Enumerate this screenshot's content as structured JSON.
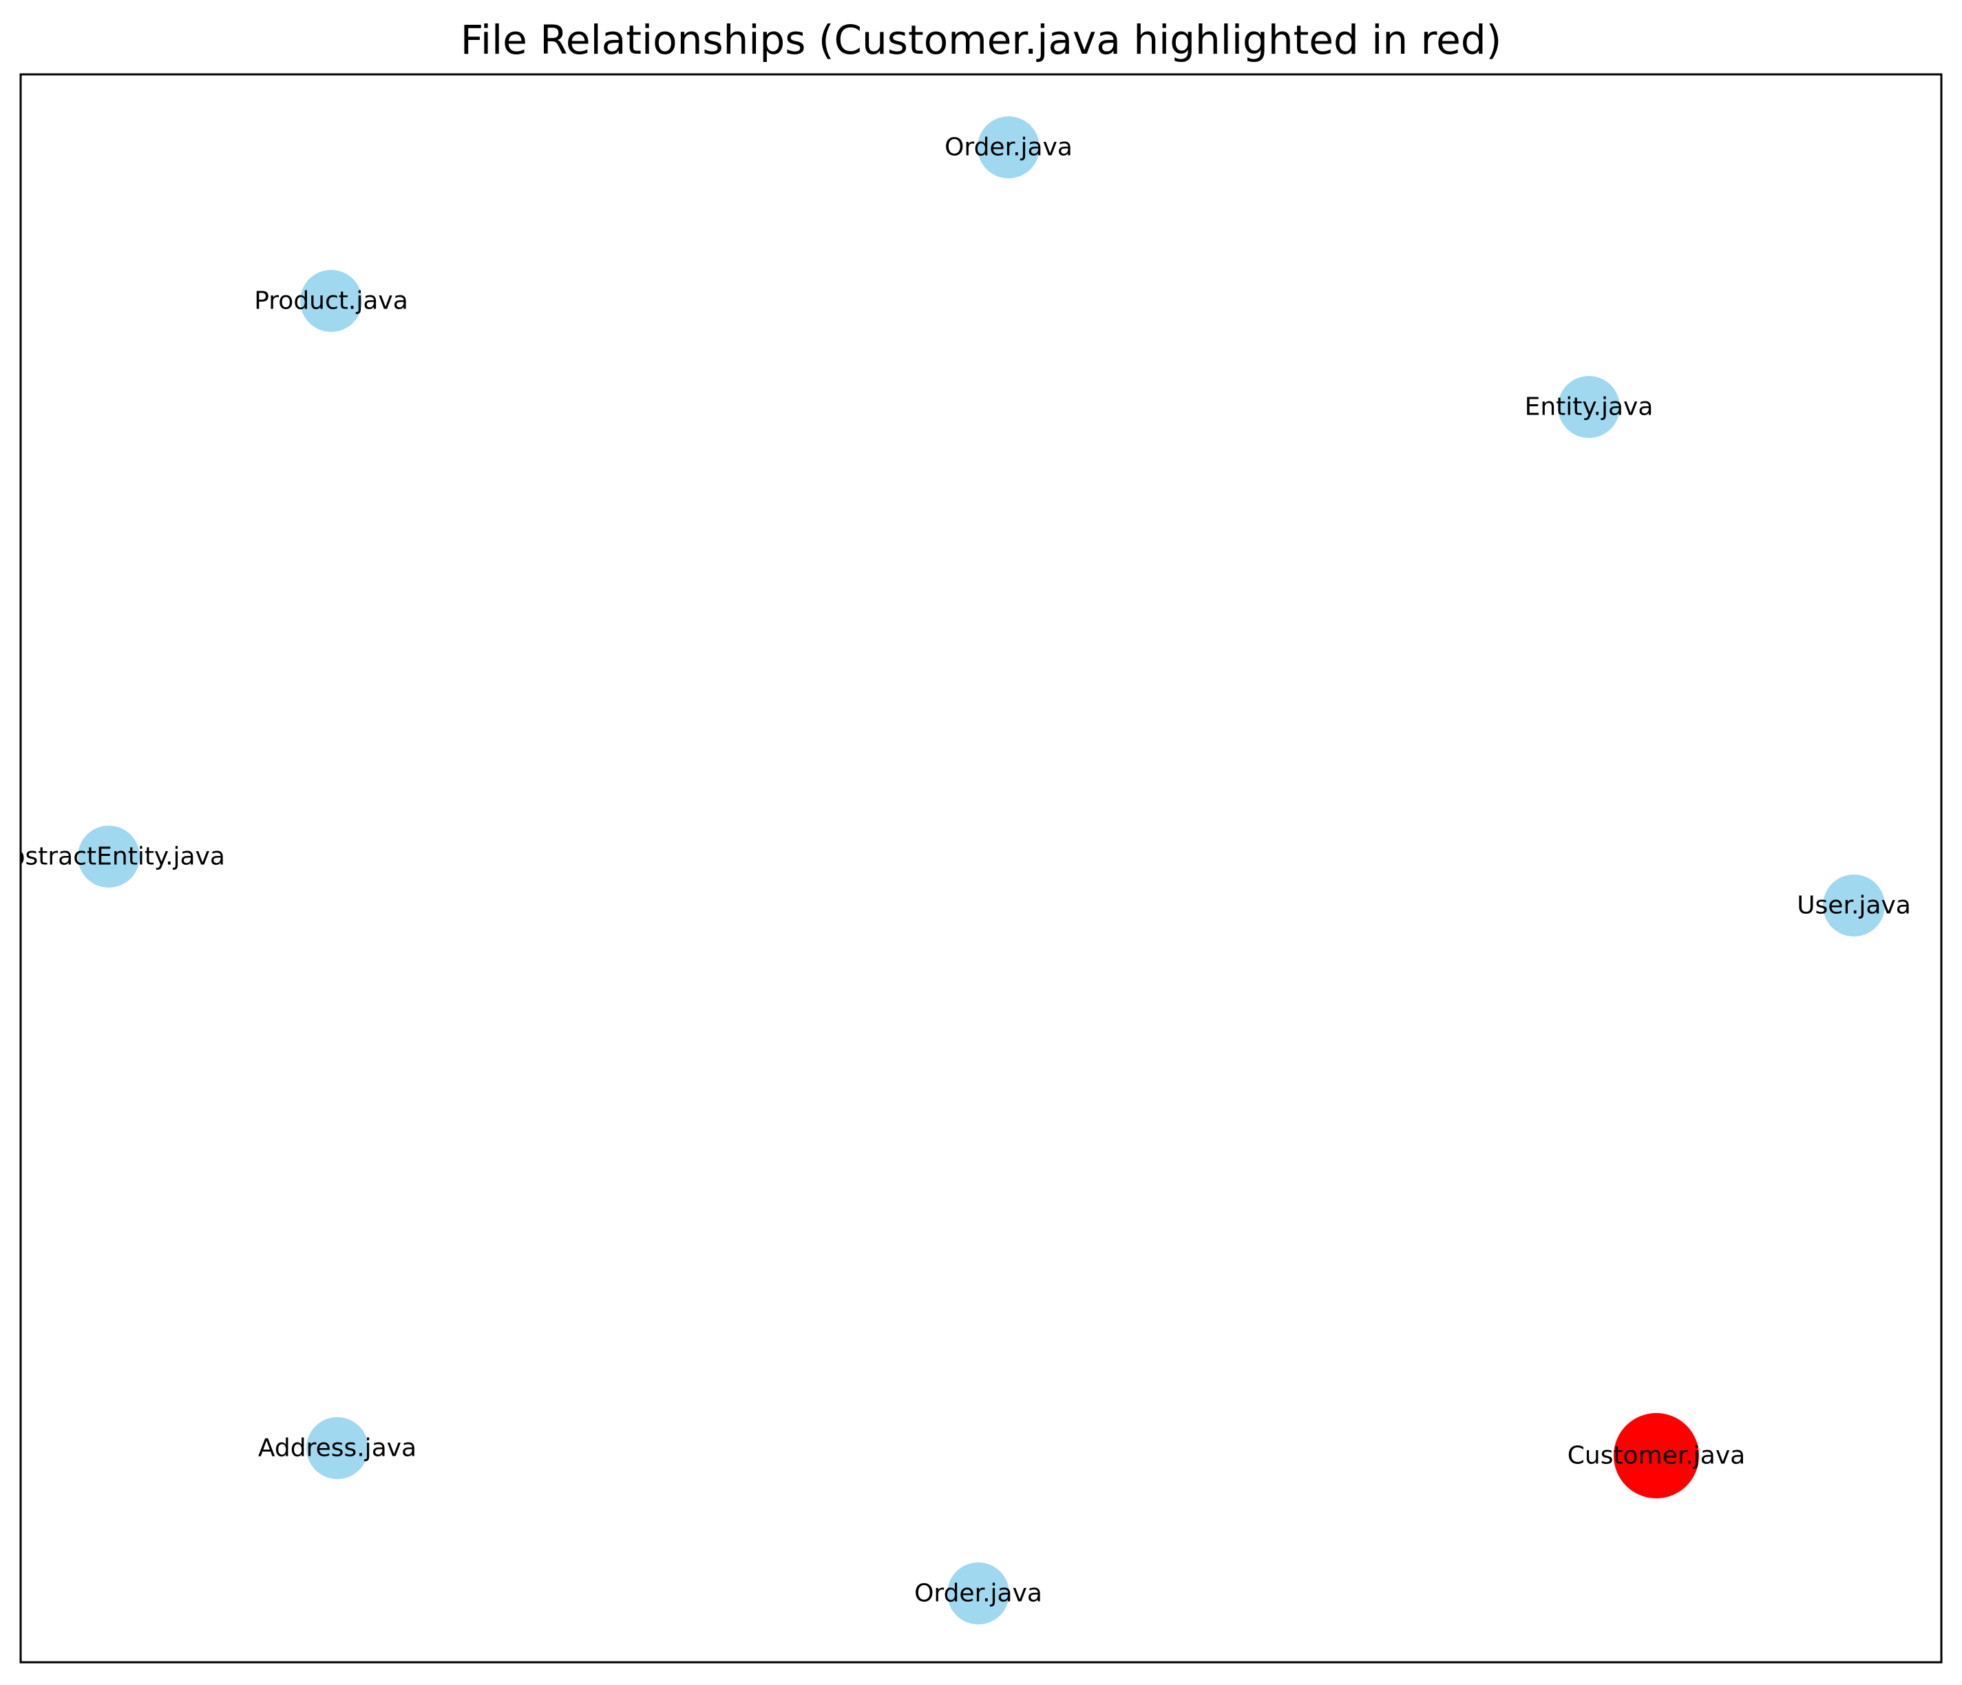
{
  "title": "File Relationships (Customer.java highlighted in red)",
  "colors": {
    "default_node": "#87ceeb",
    "highlight_node": "#ff0000",
    "frame": "#000000"
  },
  "nodes": [
    {
      "label": "Order.java",
      "highlighted": false
    },
    {
      "label": "Product.java",
      "highlighted": false
    },
    {
      "label": "Entity.java",
      "highlighted": false
    },
    {
      "label": "AbstractEntity.java",
      "highlighted": false
    },
    {
      "label": "User.java",
      "highlighted": false
    },
    {
      "label": "Address.java",
      "highlighted": false
    },
    {
      "label": "Customer.java",
      "highlighted": true
    },
    {
      "label": "Order.java",
      "highlighted": false
    }
  ]
}
